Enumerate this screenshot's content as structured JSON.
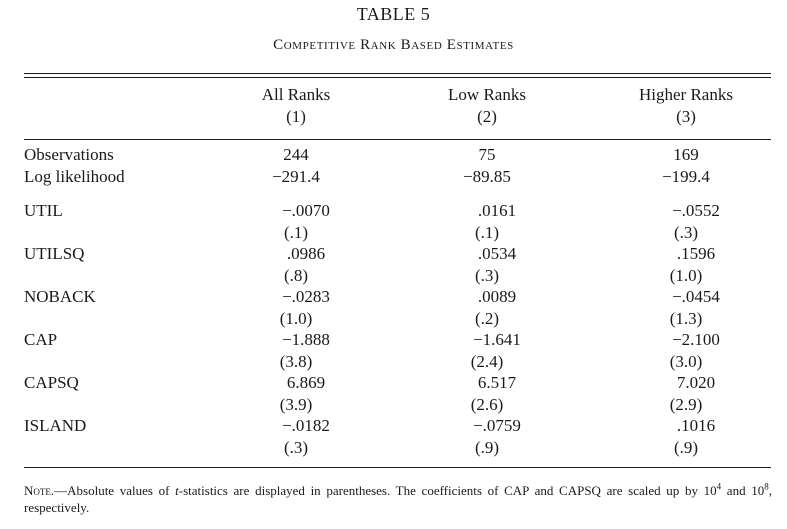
{
  "title": "TABLE 5",
  "subtitle": "Competitive Rank Based Estimates",
  "columns": [
    {
      "name": "All Ranks",
      "number": "(1)"
    },
    {
      "name": "Low Ranks",
      "number": "(2)"
    },
    {
      "name": "Higher Ranks",
      "number": "(3)"
    }
  ],
  "summary_rows": [
    {
      "label": "Observations",
      "values": [
        "244",
        "75",
        "169"
      ]
    },
    {
      "label": "Log likelihood",
      "values": [
        "−291.4",
        "−89.85",
        "−199.4"
      ]
    }
  ],
  "rows": [
    {
      "label": "UTIL",
      "coef": [
        "−.0070",
        ".0161",
        "−.0552"
      ],
      "tstat": [
        "(.1)",
        "(.1)",
        "(.3)"
      ]
    },
    {
      "label": "UTILSQ",
      "coef": [
        ".0986",
        ".0534",
        ".1596"
      ],
      "tstat": [
        "(.8)",
        "(.3)",
        "(1.0)"
      ]
    },
    {
      "label": "NOBACK",
      "coef": [
        "−.0283",
        ".0089",
        "−.0454"
      ],
      "tstat": [
        "(1.0)",
        "(.2)",
        "(1.3)"
      ]
    },
    {
      "label": "CAP",
      "coef": [
        "−1.888",
        "−1.641",
        "−2.100"
      ],
      "tstat": [
        "(3.8)",
        "(2.4)",
        "(3.0)"
      ]
    },
    {
      "label": "CAPSQ",
      "coef": [
        "6.869",
        "6.517",
        "7.020"
      ],
      "tstat": [
        "(3.9)",
        "(2.6)",
        "(2.9)"
      ]
    },
    {
      "label": "ISLAND",
      "coef": [
        "−.0182",
        "−.0759",
        ".1016"
      ],
      "tstat": [
        "(.3)",
        "(.9)",
        "(.9)"
      ]
    }
  ],
  "note": {
    "lead": "Note.",
    "dash": "—",
    "text_a": "Absolute values of ",
    "text_t": "t",
    "text_b": "-statistics are displayed in parentheses. The coefficients of CAP and CAPSQ are scaled up by 10",
    "exp1": "4",
    "text_c": " and 10",
    "exp2": "8",
    "text_d": ", respectively."
  }
}
